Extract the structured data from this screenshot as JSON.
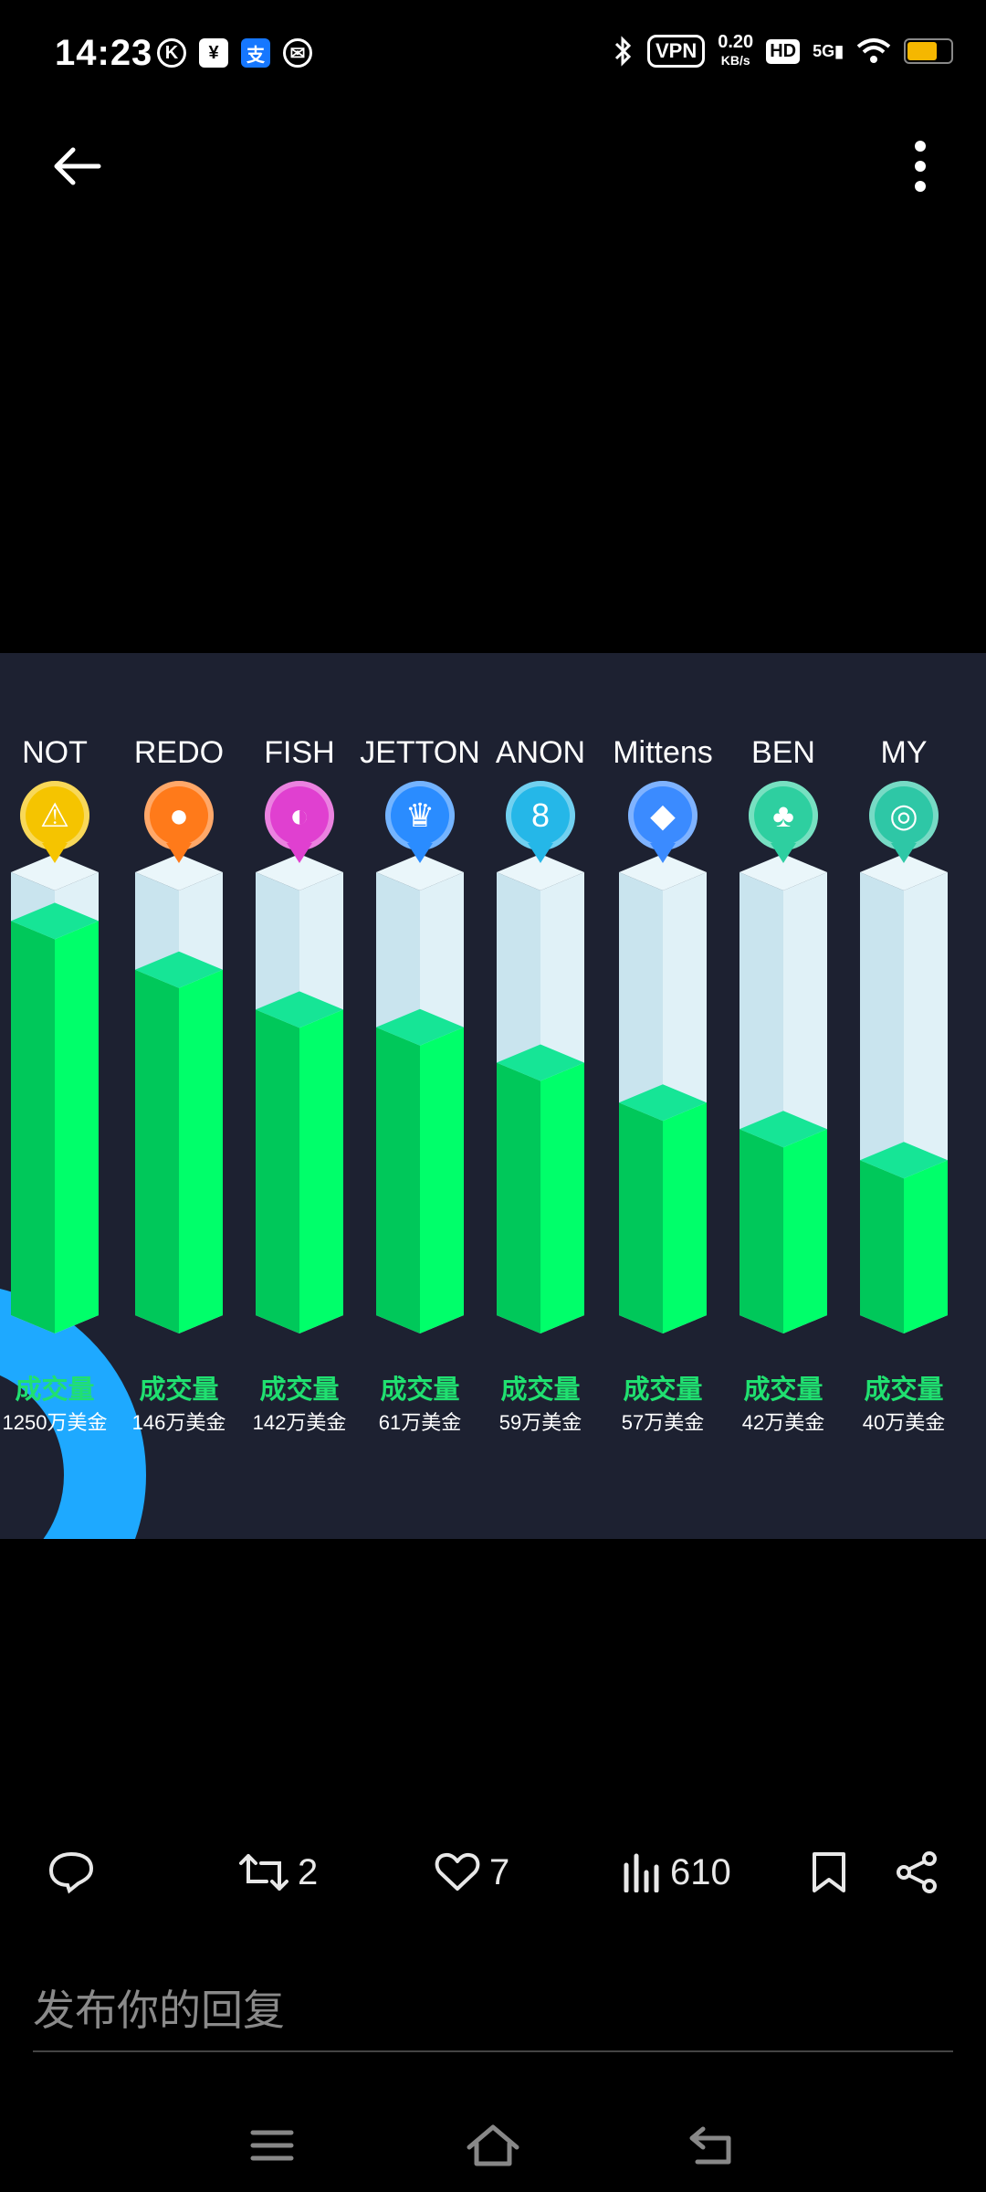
{
  "status_bar": {
    "time": "14:23",
    "left_icons": [
      "K",
      "¥",
      "支",
      "✉"
    ],
    "vpn": "VPN",
    "speed_value": "0.20",
    "speed_unit": "KB/s",
    "hd": "HD",
    "network": "5G"
  },
  "chart_data": {
    "type": "bar",
    "categories": [
      "NOT",
      "REDO",
      "FISH",
      "JETTON",
      "ANON",
      "Mittens",
      "BEN",
      "MY"
    ],
    "series_label": "成交量",
    "value_labels": [
      "1250万美金",
      "146万美金",
      "142万美金",
      "61万美金",
      "59万美金",
      "57万美金",
      "42万美金",
      "40万美金"
    ],
    "values": [
      1250,
      146,
      142,
      61,
      59,
      57,
      42,
      40
    ],
    "unit": "万美金",
    "fill_levels": [
      0.89,
      0.78,
      0.69,
      0.65,
      0.57,
      0.48,
      0.42,
      0.35
    ],
    "pin_colors": [
      "#f5c400",
      "#ff7a1a",
      "#e040d0",
      "#2a8cff",
      "#25b7e8",
      "#3b8bff",
      "#2ecfa0",
      "#2ec7a6"
    ],
    "pin_icons": [
      "⚠",
      "●",
      "◐",
      "♛",
      "8",
      "◆",
      "♣",
      "◎"
    ]
  },
  "actions": {
    "comment_count": "",
    "repost_count": "2",
    "like_count": "7",
    "views_count": "610"
  },
  "reply": {
    "placeholder": "发布你的回复"
  },
  "colors": {
    "panel_bg": "#1d2131",
    "bar_green": "#00ff6a",
    "bar_green_dark": "#00c85a",
    "bar_top": "#16e596",
    "bar_empty": "#d8eef5",
    "label_green": "#20e070"
  }
}
